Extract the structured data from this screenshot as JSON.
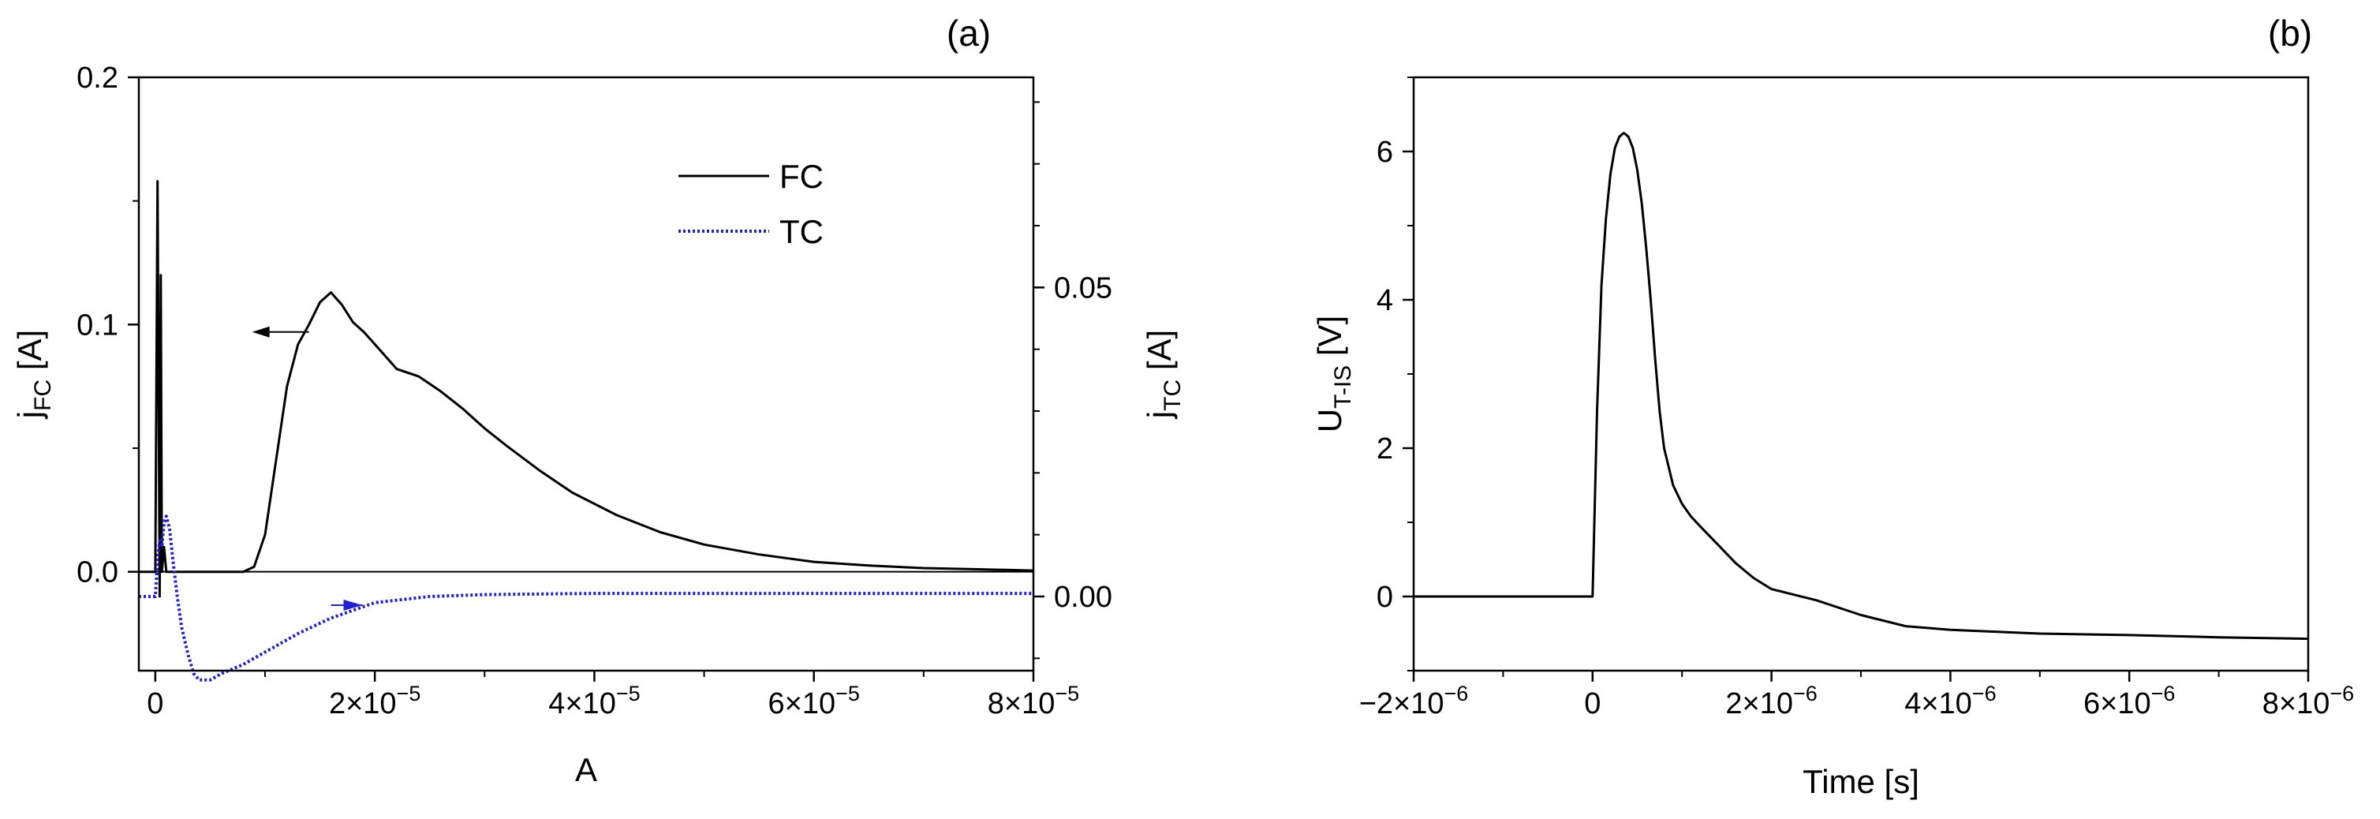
{
  "chart_data": [
    {
      "panel_label": "(a)",
      "type": "line",
      "xlabel": "A",
      "xlim": [
        -1.5e-06,
        8e-05
      ],
      "x_ticks": [
        {
          "value": 0,
          "label": "0"
        },
        {
          "value": 2e-05,
          "label": "2×10",
          "exp": "−5"
        },
        {
          "value": 4e-05,
          "label": "4×10",
          "exp": "−5"
        },
        {
          "value": 6e-05,
          "label": "6×10",
          "exp": "−5"
        },
        {
          "value": 8e-05,
          "label": "8×10",
          "exp": "−5"
        }
      ],
      "ylabel_left": {
        "main": "j",
        "sub": "FC",
        "unit": " [A]"
      },
      "ylim_left": [
        -0.04,
        0.2
      ],
      "y_ticks_left": [
        {
          "value": 0.0,
          "label": "0.0"
        },
        {
          "value": 0.1,
          "label": "0.1"
        },
        {
          "value": 0.2,
          "label": "0.2"
        }
      ],
      "ylabel_right": {
        "main": "j",
        "sub": "TC",
        "unit": " [A]"
      },
      "ylim_right": [
        -0.012,
        0.084
      ],
      "y_ticks_right": [
        {
          "value": 0.0,
          "label": "0.00"
        },
        {
          "value": 0.05,
          "label": "0.05"
        }
      ],
      "legend": [
        {
          "label": "FC",
          "style": "solid",
          "color": "#000000"
        },
        {
          "label": "TC",
          "style": "dotted",
          "color": "#1f1fd6"
        }
      ],
      "legend_position": "top-center",
      "annotations": [
        {
          "text": "arrow pointing left toward FC axis",
          "color": "#000000",
          "direction": "left",
          "x": 1.4e-05,
          "y": 0.097
        },
        {
          "text": "arrow pointing right toward TC axis",
          "color": "#1f1fd6",
          "direction": "right",
          "x": 1.6e-05,
          "y": -0.0135
        }
      ],
      "series": [
        {
          "name": "FC",
          "axis": "left",
          "color": "#000000",
          "style": "solid",
          "x": [
            -1.5e-06,
            -2e-07,
            0,
            2e-07,
            4e-07,
            5e-07,
            6e-07,
            8e-07,
            1e-06,
            2e-06,
            4e-06,
            6e-06,
            7e-06,
            8e-06,
            9e-06,
            1e-05,
            1.1e-05,
            1.2e-05,
            1.3e-05,
            1.4e-05,
            1.5e-05,
            1.6e-05,
            1.7e-05,
            1.8e-05,
            1.9e-05,
            2e-05,
            2.2e-05,
            2.4e-05,
            2.6e-05,
            2.8e-05,
            3e-05,
            3.2e-05,
            3.5e-05,
            3.8e-05,
            4.2e-05,
            4.6e-05,
            5e-05,
            5.5e-05,
            6e-05,
            6.5e-05,
            7e-05,
            7.5e-05,
            8e-05
          ],
          "y": [
            0.0,
            0.0,
            0.0,
            0.158,
            -0.01,
            0.12,
            0.0,
            0.01,
            0.0,
            0.0,
            0.0,
            0.0,
            0.0,
            0.0,
            0.002,
            0.015,
            0.045,
            0.075,
            0.092,
            0.1,
            0.109,
            0.113,
            0.108,
            0.101,
            0.097,
            0.092,
            0.082,
            0.079,
            0.073,
            0.066,
            0.058,
            0.051,
            0.041,
            0.032,
            0.023,
            0.016,
            0.011,
            0.007,
            0.004,
            0.0025,
            0.0015,
            0.001,
            0.0005
          ]
        },
        {
          "name": "TC",
          "axis": "right",
          "color": "#1f1fd6",
          "style": "dotted",
          "x": [
            -1.5e-06,
            -5e-07,
            0,
            2e-07,
            4e-07,
            6e-07,
            8e-07,
            1e-06,
            1.3e-06,
            1.6e-06,
            2e-06,
            2.4e-06,
            3e-06,
            3.5e-06,
            4e-06,
            5e-06,
            6e-06,
            8e-06,
            1e-05,
            1.3e-05,
            1.6e-05,
            2e-05,
            2.5e-05,
            3e-05,
            4e-05,
            6e-05,
            8e-05
          ],
          "y": [
            0.0,
            0.0,
            0.0,
            0.006,
            0.009,
            0.008,
            0.012,
            0.013,
            0.011,
            0.006,
            0.0,
            -0.005,
            -0.0095,
            -0.0125,
            -0.0135,
            -0.0135,
            -0.0125,
            -0.011,
            -0.009,
            -0.006,
            -0.0035,
            -0.001,
            0.0,
            0.0003,
            0.0005,
            0.0005,
            0.0005
          ]
        }
      ]
    },
    {
      "panel_label": "(b)",
      "type": "line",
      "xlabel": "Time [s]",
      "xlim": [
        -2e-06,
        8e-06
      ],
      "x_ticks": [
        {
          "value": -2e-06,
          "label": "−2×10",
          "exp": "−6"
        },
        {
          "value": 0,
          "label": "0"
        },
        {
          "value": 2e-06,
          "label": "2×10",
          "exp": "−6"
        },
        {
          "value": 4e-06,
          "label": "4×10",
          "exp": "−6"
        },
        {
          "value": 6e-06,
          "label": "6×10",
          "exp": "−6"
        },
        {
          "value": 8e-06,
          "label": "8×10",
          "exp": "−6"
        }
      ],
      "ylabel": {
        "main": "U",
        "sub": "T-IS",
        "unit": " [V]"
      },
      "ylim": [
        -1,
        7
      ],
      "y_ticks": [
        {
          "value": 0,
          "label": "0"
        },
        {
          "value": 2,
          "label": "2"
        },
        {
          "value": 4,
          "label": "4"
        },
        {
          "value": 6,
          "label": "6"
        }
      ],
      "series": [
        {
          "name": "U_T-IS",
          "color": "#000000",
          "style": "solid",
          "x": [
            -2e-06,
            -1.5e-06,
            -1e-06,
            -5e-07,
            -1e-07,
            0,
            5e-08,
            1e-07,
            1.5e-07,
            2e-07,
            2.5e-07,
            3e-07,
            3.5e-07,
            4e-07,
            4.5e-07,
            5e-07,
            5.5e-07,
            6e-07,
            6.5e-07,
            7e-07,
            7.5e-07,
            8e-07,
            9e-07,
            1e-06,
            1.1e-06,
            1.2e-06,
            1.4e-06,
            1.6e-06,
            1.8e-06,
            2e-06,
            2.5e-06,
            3e-06,
            3.5e-06,
            4e-06,
            5e-06,
            6e-06,
            7e-06,
            8e-06
          ],
          "y": [
            0.0,
            0.0,
            0.0,
            0.0,
            0.0,
            0.0,
            2.5,
            4.2,
            5.1,
            5.7,
            6.05,
            6.2,
            6.25,
            6.2,
            6.05,
            5.75,
            5.3,
            4.7,
            4.0,
            3.2,
            2.5,
            2.0,
            1.5,
            1.25,
            1.08,
            0.95,
            0.7,
            0.45,
            0.25,
            0.1,
            -0.05,
            -0.25,
            -0.4,
            -0.45,
            -0.5,
            -0.52,
            -0.55,
            -0.57
          ]
        }
      ]
    }
  ]
}
